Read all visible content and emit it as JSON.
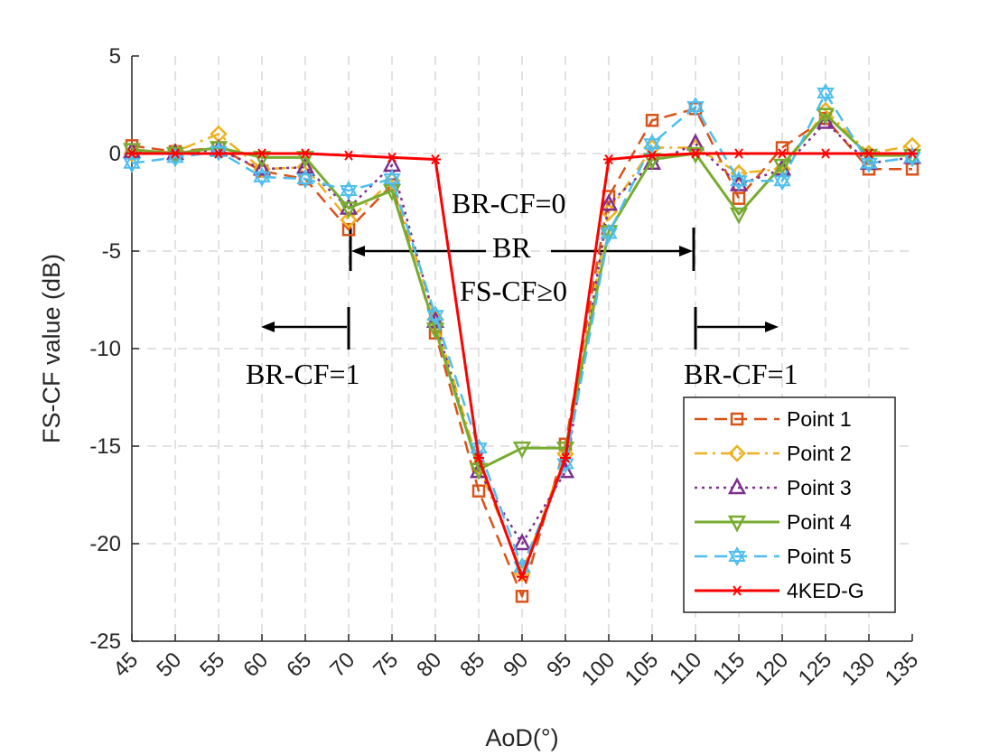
{
  "chart_data": {
    "type": "line",
    "xlabel": "AoD(°)",
    "ylabel": "FS-CF value (dB)",
    "xlim": [
      45,
      135
    ],
    "ylim": [
      -25,
      5
    ],
    "x": [
      45,
      50,
      55,
      60,
      65,
      70,
      75,
      80,
      85,
      90,
      95,
      100,
      105,
      110,
      115,
      120,
      125,
      130,
      135
    ],
    "x_ticks": [
      "45",
      "50",
      "55",
      "60",
      "65",
      "70",
      "75",
      "80",
      "85",
      "90",
      "95",
      "100",
      "105",
      "110",
      "115",
      "120",
      "125",
      "130",
      "135"
    ],
    "y_ticks": [
      {
        "value": 5,
        "label": "5"
      },
      {
        "value": 0,
        "label": "0"
      },
      {
        "value": -5,
        "label": "-5"
      },
      {
        "value": -10,
        "label": "-10"
      },
      {
        "value": -15,
        "label": "-15"
      },
      {
        "value": -20,
        "label": "-20"
      },
      {
        "value": -25,
        "label": "-25"
      }
    ],
    "grid": true,
    "legend_position": "bottom-right",
    "series": [
      {
        "name": "Point 1",
        "color": "#D95319",
        "line": "dashed",
        "marker": "square",
        "values": [
          0.4,
          0.1,
          0.3,
          -0.9,
          -1.3,
          -3.9,
          -1.6,
          -9.2,
          -17.3,
          -22.7,
          -14.9,
          -2.2,
          1.7,
          2.3,
          -2.3,
          0.3,
          1.8,
          -0.8,
          -0.8
        ]
      },
      {
        "name": "Point 2",
        "color": "#EDB120",
        "line": "dashdot",
        "marker": "diamond",
        "values": [
          0.0,
          0.1,
          1.0,
          -0.8,
          -0.7,
          -3.4,
          -1.4,
          -8.5,
          -16.0,
          -21.5,
          -15.4,
          -3.0,
          0.3,
          0.3,
          -1.0,
          -0.8,
          2.2,
          0.0,
          0.4
        ]
      },
      {
        "name": "Point 3",
        "color": "#7E2F8E",
        "line": "dotted",
        "marker": "triangle-up",
        "values": [
          0.1,
          0.0,
          0.2,
          -0.8,
          -0.7,
          -2.8,
          -0.6,
          -8.6,
          -16.3,
          -20.0,
          -16.3,
          -2.6,
          -0.5,
          0.5,
          -1.6,
          -0.8,
          1.6,
          -0.5,
          -0.2
        ]
      },
      {
        "name": "Point 4",
        "color": "#77AC30",
        "line": "solid",
        "marker": "triangle-down",
        "values": [
          0.2,
          0.0,
          0.3,
          -0.2,
          -0.2,
          -2.8,
          -1.9,
          -9.0,
          -16.2,
          -15.1,
          -15.1,
          -4.0,
          -0.3,
          0.0,
          -3.1,
          -0.6,
          2.0,
          -0.1,
          -0.1
        ]
      },
      {
        "name": "Point 5",
        "color": "#4DBEEE",
        "line": "dashed",
        "marker": "hexagram",
        "values": [
          -0.5,
          -0.2,
          0.1,
          -1.2,
          -1.3,
          -1.9,
          -1.3,
          -8.3,
          -15.1,
          -21.2,
          -15.9,
          -4.1,
          0.5,
          2.4,
          -1.4,
          -1.4,
          3.1,
          -0.5,
          -0.2
        ]
      },
      {
        "name": "4KED-G",
        "color": "#FF0000",
        "line": "solid",
        "marker": "asterisk",
        "values": [
          0.0,
          0.0,
          0.0,
          0.0,
          0.0,
          -0.1,
          -0.2,
          -0.3,
          -15.6,
          -21.7,
          -15.6,
          -0.3,
          -0.1,
          0.0,
          0.0,
          0.0,
          0.0,
          0.0,
          0.0
        ]
      }
    ],
    "annotations": {
      "br_cf_0": "BR-CF=0",
      "br": "BR",
      "fs_cf": "FS-CF≥0",
      "br_cf_1_left": "BR-CF=1",
      "br_cf_1_right": "BR-CF=1"
    }
  }
}
